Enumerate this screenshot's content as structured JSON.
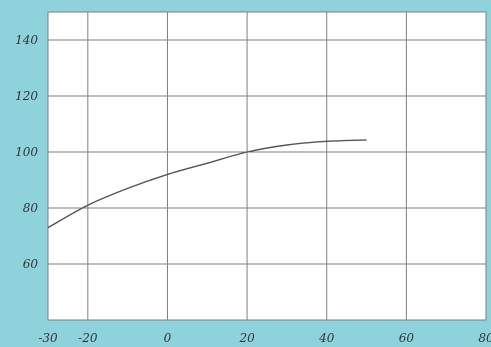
{
  "chart_data": {
    "type": "line",
    "title": "",
    "xlabel": "",
    "ylabel": "",
    "xlim": [
      -30,
      80
    ],
    "ylim": [
      40,
      150
    ],
    "x_ticks": [
      -30,
      -20,
      0,
      20,
      40,
      60,
      80
    ],
    "x_tick_labels": [
      "-30",
      "-20",
      "0",
      "20",
      "40",
      "60",
      "80"
    ],
    "y_ticks": [
      60,
      80,
      100,
      120,
      140
    ],
    "y_tick_labels": [
      "60",
      "80",
      "100",
      "120",
      "140"
    ],
    "grid": true,
    "legend": "none",
    "series": [
      {
        "x": [
          -30,
          -20,
          -10,
          0,
          10,
          20,
          30,
          40,
          50
        ],
        "y": [
          73,
          81,
          87,
          92,
          96,
          100,
          102.5,
          103.8,
          104.3
        ],
        "color": "#555555"
      }
    ],
    "colors": {
      "page_background": "#8ed3dc",
      "plot_background": "#ffffff",
      "grid": "#7f7f7f",
      "line": "#555555",
      "text": "#333333"
    }
  }
}
